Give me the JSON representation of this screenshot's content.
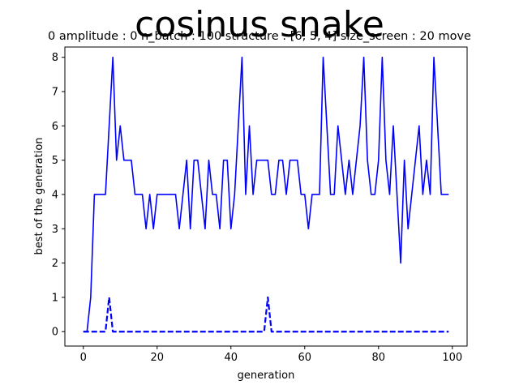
{
  "chart_data": {
    "type": "line",
    "title": "cosinus snake",
    "subtitle": "0   amplitude : 0   n_batch : 100   structure : [6, 5, 4]   size_screen : 20   move",
    "xlabel": "generation",
    "ylabel": "best of the generation",
    "xlim": [
      -5,
      104
    ],
    "ylim": [
      -0.42,
      8.3
    ],
    "xticks": [
      0,
      20,
      40,
      60,
      80,
      100
    ],
    "yticks": [
      0,
      1,
      2,
      3,
      4,
      5,
      6,
      7,
      8
    ],
    "grid": false,
    "color": "#0000ff",
    "series": [
      {
        "style": "solid",
        "x": [
          0,
          1,
          2,
          3,
          4,
          5,
          6,
          7,
          8,
          9,
          10,
          11,
          12,
          13,
          14,
          15,
          16,
          17,
          18,
          19,
          20,
          21,
          22,
          23,
          24,
          25,
          26,
          27,
          28,
          29,
          30,
          31,
          32,
          33,
          34,
          35,
          36,
          37,
          38,
          39,
          40,
          41,
          42,
          43,
          44,
          45,
          46,
          47,
          48,
          49,
          50,
          51,
          52,
          53,
          54,
          55,
          56,
          57,
          58,
          59,
          60,
          61,
          62,
          63,
          64,
          65,
          66,
          67,
          68,
          69,
          70,
          71,
          72,
          73,
          74,
          75,
          76,
          77,
          78,
          79,
          80,
          81,
          82,
          83,
          84,
          85,
          86,
          87,
          88,
          89,
          90,
          91,
          92,
          93,
          94,
          95,
          96,
          97,
          98,
          99
        ],
        "y": [
          0,
          0,
          1,
          4,
          4,
          4,
          4,
          6,
          8,
          5,
          6,
          5,
          5,
          5,
          4,
          4,
          4,
          3,
          4,
          3,
          4,
          4,
          4,
          4,
          4,
          4,
          3,
          4,
          5,
          3,
          5,
          5,
          4,
          3,
          5,
          4,
          4,
          3,
          5,
          5,
          3,
          4,
          6,
          8,
          4,
          6,
          4,
          5,
          5,
          5,
          5,
          4,
          4,
          5,
          5,
          4,
          5,
          5,
          5,
          4,
          4,
          3,
          4,
          4,
          4,
          8,
          6,
          4,
          4,
          6,
          5,
          4,
          5,
          4,
          5,
          6,
          8,
          5,
          4,
          4,
          5,
          8,
          5,
          4,
          6,
          4,
          2,
          5,
          3,
          4,
          5,
          6,
          4,
          5,
          4,
          8,
          6,
          4,
          4,
          4
        ]
      },
      {
        "style": "dashed",
        "x": [
          0,
          1,
          2,
          3,
          4,
          5,
          6,
          7,
          8,
          9,
          10,
          11,
          12,
          13,
          14,
          15,
          16,
          17,
          18,
          19,
          20,
          21,
          22,
          23,
          24,
          25,
          26,
          27,
          28,
          29,
          30,
          31,
          32,
          33,
          34,
          35,
          36,
          37,
          38,
          39,
          40,
          41,
          42,
          43,
          44,
          45,
          46,
          47,
          48,
          49,
          50,
          51,
          52,
          53,
          54,
          55,
          56,
          57,
          58,
          59,
          60,
          61,
          62,
          63,
          64,
          65,
          66,
          67,
          68,
          69,
          70,
          71,
          72,
          73,
          74,
          75,
          76,
          77,
          78,
          79,
          80,
          81,
          82,
          83,
          84,
          85,
          86,
          87,
          88,
          89,
          90,
          91,
          92,
          93,
          94,
          95,
          96,
          97,
          98,
          99
        ],
        "y": [
          0,
          0,
          0,
          0,
          0,
          0,
          0,
          1,
          0,
          0,
          0,
          0,
          0,
          0,
          0,
          0,
          0,
          0,
          0,
          0,
          0,
          0,
          0,
          0,
          0,
          0,
          0,
          0,
          0,
          0,
          0,
          0,
          0,
          0,
          0,
          0,
          0,
          0,
          0,
          0,
          0,
          0,
          0,
          0,
          0,
          0,
          0,
          0,
          0,
          0,
          1,
          0,
          0,
          0,
          0,
          0,
          0,
          0,
          0,
          0,
          0,
          0,
          0,
          0,
          0,
          0,
          0,
          0,
          0,
          0,
          0,
          0,
          0,
          0,
          0,
          0,
          0,
          0,
          0,
          0,
          0,
          0,
          0,
          0,
          0,
          0,
          0,
          0,
          0,
          0,
          0,
          0,
          0,
          0,
          0,
          0,
          0,
          0,
          0,
          0
        ]
      }
    ]
  }
}
